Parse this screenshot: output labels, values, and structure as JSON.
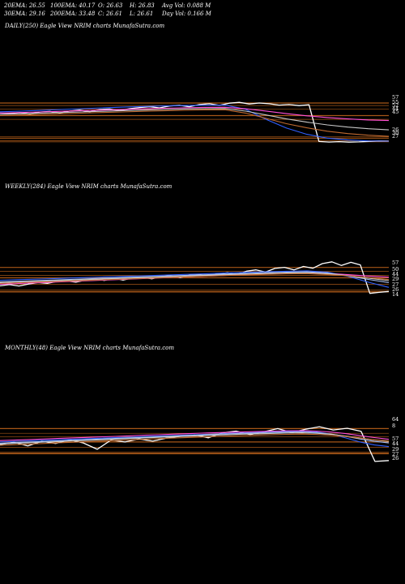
{
  "header": {
    "row1": [
      "20EMA: 26.55",
      "100EMA: 40.17",
      "O: 26.63",
      "H: 26.83",
      "Avg Vol: 0.088  M"
    ],
    "row2": [
      "30EMA: 29.16",
      "200EMA: 33.48",
      "C: 26.61",
      "L: 26.61",
      "Day Vol: 0.166  M"
    ]
  },
  "colors": {
    "background": "#000000",
    "price": "#ffffff",
    "ema_blue": "#3060ff",
    "ema_pink": "#ff4fd8",
    "ema_light_blue": "#a6bdf0",
    "ema_gray": "#c8c8c8",
    "ema_orange": "#c06a30",
    "support_line": "#b8601a"
  },
  "chart_data": [
    {
      "type": "line",
      "title": "DAILY(250) Eagle   View  NRIM charts MunafaSutra.com",
      "axis_labels": [
        "57",
        "55",
        "52",
        "44",
        "45",
        "26",
        "30",
        "27"
      ],
      "support_levels": [
        57,
        55,
        52,
        47,
        44,
        30,
        29,
        27,
        26
      ],
      "ylim": [
        24,
        68
      ],
      "series": [
        {
          "role": "price",
          "values": [
            49.0,
            48.7,
            49.4,
            48.4,
            49.8,
            50.3,
            49.1,
            50.6,
            51.3,
            50.1,
            51.8,
            52.2,
            51.0,
            52.5,
            53.4,
            54.0,
            53.1,
            54.6,
            55.2,
            54.0,
            55.8,
            56.4,
            55.1,
            56.9,
            57.5,
            56.2,
            57.0,
            56.4,
            55.3,
            55.8,
            54.9,
            55.6,
            26.3,
            25.9,
            26.2,
            25.8,
            26.0,
            26.4,
            26.7,
            26.6
          ]
        },
        {
          "role": "ema_blue",
          "values": [
            50.0,
            50.5,
            51.1,
            51.8,
            52.5,
            53.1,
            53.7,
            54.2,
            54.7,
            55.0,
            55.2,
            55.3,
            52.0,
            44.0,
            37.0,
            32.0,
            29.0,
            27.5,
            26.8,
            26.6
          ]
        },
        {
          "role": "ema_pink",
          "values": [
            49.0,
            49.4,
            49.9,
            50.4,
            50.9,
            51.4,
            51.9,
            52.4,
            52.8,
            53.2,
            53.5,
            53.6,
            52.4,
            50.6,
            48.5,
            46.8,
            45.4,
            44.3,
            43.5,
            43.0
          ]
        },
        {
          "role": "ema_gray",
          "values": [
            48.0,
            48.4,
            48.9,
            49.4,
            49.9,
            50.4,
            50.9,
            51.4,
            51.8,
            52.2,
            52.5,
            52.6,
            50.5,
            47.5,
            44.3,
            41.7,
            39.5,
            37.8,
            36.5,
            35.6
          ]
        },
        {
          "role": "ema_orange",
          "values": [
            47.0,
            47.4,
            47.9,
            48.4,
            48.9,
            49.4,
            49.9,
            50.4,
            50.8,
            51.2,
            51.5,
            51.6,
            49.0,
            44.8,
            40.5,
            37.2,
            34.5,
            32.6,
            31.3,
            30.4
          ]
        }
      ]
    },
    {
      "type": "line",
      "title": "WEEKLY(284) Eagle   View  NRIM charts MunafaSutra.com",
      "axis_labels": [
        "57",
        "50",
        "44",
        "29",
        "27",
        "26",
        "14"
      ],
      "support_levels": [
        57,
        52,
        47,
        44,
        36,
        29,
        27,
        26
      ],
      "ylim": [
        10,
        75
      ],
      "series": [
        {
          "role": "price",
          "values": [
            34.0,
            35.5,
            33.8,
            36.2,
            38.0,
            37.1,
            39.5,
            40.2,
            38.6,
            41.0,
            42.4,
            40.8,
            43.5,
            41.2,
            43.9,
            44.6,
            42.8,
            45.3,
            46.9,
            44.1,
            47.5,
            48.2,
            46.4,
            49.0,
            50.3,
            48.1,
            52.4,
            54.0,
            51.2,
            55.8,
            57.1,
            53.9,
            58.2,
            56.0,
            61.8,
            64.0,
            59.5,
            63.4,
            60.2,
            24.5,
            25.8,
            27.0
          ]
        },
        {
          "role": "ema_blue",
          "values": [
            41.0,
            41.8,
            42.5,
            43.3,
            44.2,
            45.0,
            45.8,
            46.6,
            47.4,
            48.3,
            49.1,
            50.0,
            50.8,
            51.6,
            52.3,
            52.8,
            51.0,
            46.0,
            38.5,
            32.0
          ]
        },
        {
          "role": "ema_pink",
          "values": [
            36.0,
            37.0,
            38.0,
            39.0,
            40.0,
            41.0,
            42.0,
            43.0,
            44.0,
            45.0,
            46.0,
            47.0,
            48.0,
            48.9,
            49.7,
            50.2,
            49.5,
            48.0,
            46.3,
            44.8
          ]
        },
        {
          "role": "ema_light_blue",
          "values": [
            39.0,
            39.8,
            40.7,
            41.6,
            42.5,
            43.4,
            44.3,
            45.2,
            46.1,
            47.0,
            47.9,
            48.8,
            49.6,
            50.4,
            51.1,
            51.5,
            50.0,
            46.5,
            42.0,
            38.0
          ]
        },
        {
          "role": "ema_gray",
          "values": [
            38.0,
            38.9,
            39.8,
            40.7,
            41.6,
            42.5,
            43.4,
            44.3,
            45.2,
            46.1,
            47.0,
            47.9,
            48.7,
            49.4,
            50.0,
            50.3,
            49.0,
            46.8,
            43.6,
            40.5
          ]
        },
        {
          "role": "ema_orange",
          "values": [
            37.0,
            37.9,
            38.8,
            39.7,
            40.6,
            41.5,
            42.4,
            43.3,
            44.2,
            45.1,
            46.0,
            46.9,
            47.7,
            48.4,
            49.0,
            49.3,
            48.2,
            46.6,
            44.3,
            41.8
          ]
        }
      ]
    },
    {
      "type": "line",
      "title": "MONTHLY(48) Eagle   View  NRIM charts MunafaSutra.com",
      "axis_labels": [
        "64",
        "8",
        "57",
        "44",
        "29",
        "27",
        "26"
      ],
      "support_levels": [
        64,
        57,
        52,
        44,
        36,
        29,
        27,
        26
      ],
      "ylim": [
        5,
        90
      ],
      "series": [
        {
          "role": "price",
          "values": [
            40.0,
            43.5,
            38.2,
            45.0,
            41.8,
            47.2,
            42.5,
            33.1,
            46.8,
            44.0,
            48.5,
            45.2,
            49.8,
            52.5,
            54.8,
            50.2,
            57.6,
            60.2,
            55.0,
            59.1,
            64.0,
            58.2,
            63.0,
            66.8,
            62.0,
            64.5,
            60.0,
            14.8,
            16.2
          ]
        },
        {
          "role": "ema_blue",
          "values": [
            44.0,
            44.8,
            45.6,
            46.4,
            47.2,
            48.0,
            48.8,
            49.6,
            50.4,
            51.2,
            52.0,
            52.8,
            53.6,
            54.4,
            55.2,
            56.0,
            56.8,
            57.6,
            58.4,
            59.2,
            59.8,
            60.2,
            59.0,
            55.5,
            50.0,
            44.0,
            39.5,
            37.0
          ]
        },
        {
          "role": "ema_pink",
          "values": [
            46.0,
            46.8,
            47.6,
            48.4,
            49.2,
            50.0,
            50.8,
            51.6,
            52.4,
            53.2,
            54.0,
            54.8,
            55.6,
            56.4,
            57.2,
            58.0,
            58.6,
            59.2,
            59.8,
            60.3,
            60.8,
            61.0,
            60.2,
            58.8,
            56.5,
            53.5,
            50.5,
            48.0
          ]
        },
        {
          "role": "ema_light_blue",
          "values": [
            42.0,
            42.9,
            43.8,
            44.7,
            45.6,
            46.5,
            47.4,
            48.3,
            49.2,
            50.1,
            51.0,
            51.9,
            52.8,
            53.7,
            54.6,
            55.5,
            56.3,
            57.0,
            57.7,
            58.3,
            58.8,
            59.0,
            58.0,
            55.8,
            52.5,
            48.5,
            45.0,
            42.5
          ]
        },
        {
          "role": "ema_gray",
          "values": [
            41.0,
            41.9,
            42.8,
            43.7,
            44.6,
            45.5,
            46.4,
            47.3,
            48.2,
            49.1,
            50.0,
            50.9,
            51.8,
            52.6,
            53.4,
            54.2,
            55.0,
            55.7,
            56.3,
            56.9,
            57.4,
            57.7,
            57.0,
            55.4,
            53.0,
            50.0,
            47.0,
            44.8
          ]
        },
        {
          "role": "ema_orange",
          "values": [
            39.0,
            39.9,
            40.8,
            41.7,
            42.6,
            43.5,
            44.4,
            45.3,
            46.2,
            47.1,
            48.0,
            48.9,
            49.8,
            50.6,
            51.4,
            52.2,
            53.0,
            53.7,
            54.3,
            54.9,
            55.4,
            55.7,
            55.2,
            54.0,
            52.2,
            49.8,
            47.2,
            45.5
          ]
        }
      ]
    }
  ]
}
